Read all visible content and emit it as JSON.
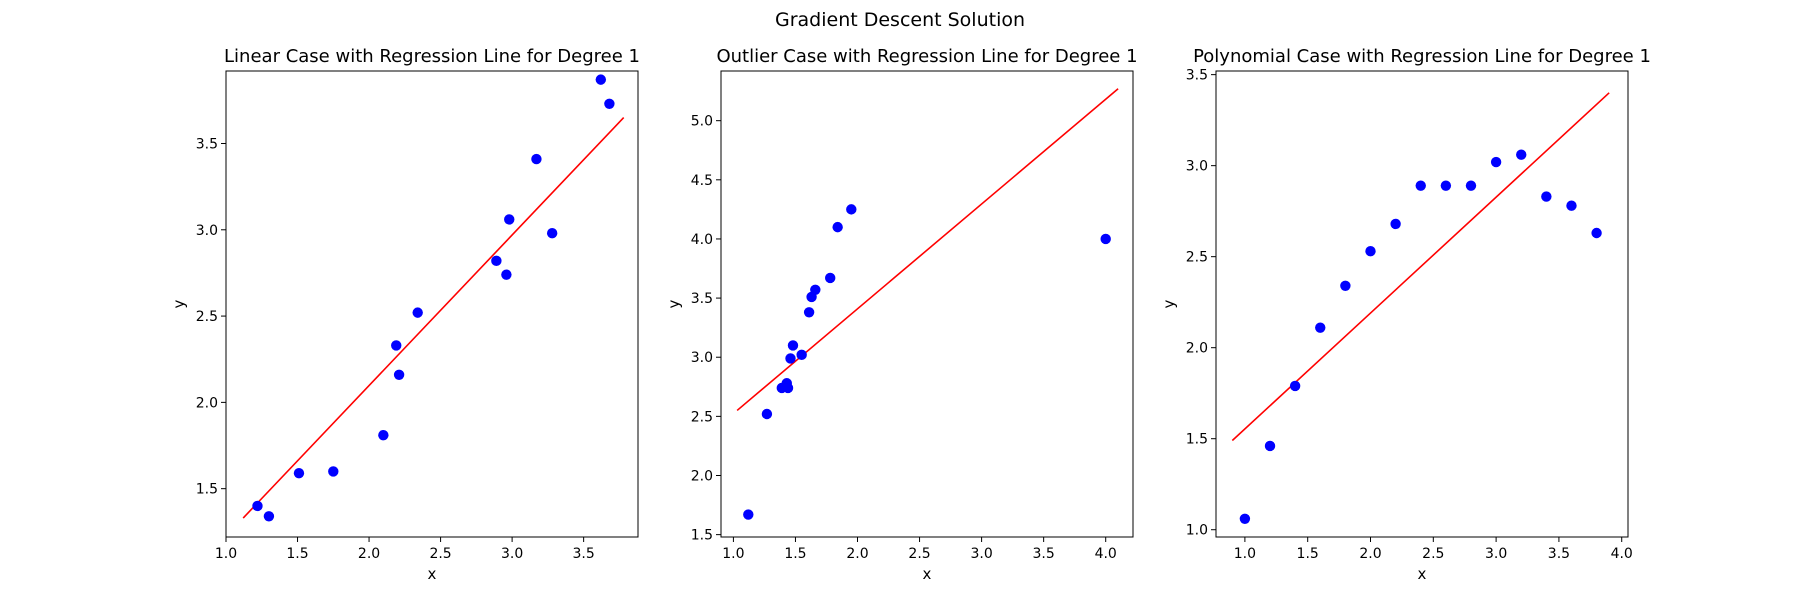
{
  "figure": {
    "suptitle": "Gradient Descent Solution"
  },
  "colors": {
    "points": "#0000ff",
    "line": "#ff0000",
    "axes": "#000000",
    "background": "#ffffff"
  },
  "chart_data": [
    {
      "type": "scatter",
      "title": "Linear Case with Regression Line for Degree 1",
      "xlabel": "x",
      "ylabel": "y",
      "xlim": [
        1.0,
        3.88
      ],
      "ylim": [
        1.22,
        3.92
      ],
      "xticks": [
        "1.0",
        "1.5",
        "2.0",
        "2.5",
        "3.0",
        "3.5"
      ],
      "yticks": [
        "1.5",
        "2.0",
        "2.5",
        "3.0",
        "3.5"
      ],
      "points": {
        "x": [
          1.22,
          1.3,
          1.51,
          1.75,
          2.1,
          2.19,
          2.21,
          2.34,
          2.89,
          2.96,
          2.98,
          3.17,
          3.28,
          3.62,
          3.68
        ],
        "y": [
          1.4,
          1.34,
          1.59,
          1.6,
          1.81,
          2.33,
          2.16,
          2.52,
          2.82,
          2.74,
          3.06,
          3.41,
          2.98,
          3.87,
          3.73
        ]
      },
      "line": {
        "x": [
          1.12,
          3.78
        ],
        "y": [
          1.33,
          3.65
        ]
      },
      "grid": false
    },
    {
      "type": "scatter",
      "title": "Outlier Case with Regression Line for Degree 1",
      "xlabel": "x",
      "ylabel": "y",
      "xlim": [
        0.9,
        4.22
      ],
      "ylim": [
        1.48,
        5.42
      ],
      "xticks": [
        "1.0",
        "1.5",
        "2.0",
        "2.5",
        "3.0",
        "3.5",
        "4.0"
      ],
      "yticks": [
        "1.5",
        "2.0",
        "2.5",
        "3.0",
        "3.5",
        "4.0",
        "4.5",
        "5.0"
      ],
      "points": {
        "x": [
          1.12,
          1.27,
          1.39,
          1.43,
          1.44,
          1.46,
          1.48,
          1.55,
          1.61,
          1.63,
          1.66,
          1.78,
          1.84,
          1.95,
          4.0
        ],
        "y": [
          1.67,
          2.52,
          2.74,
          2.78,
          2.74,
          2.99,
          3.1,
          3.02,
          3.38,
          3.51,
          3.57,
          3.67,
          4.1,
          4.25,
          4.0
        ]
      },
      "line": {
        "x": [
          1.03,
          4.1
        ],
        "y": [
          2.55,
          5.27
        ]
      },
      "grid": false
    },
    {
      "type": "scatter",
      "title": "Polynomial Case with Regression Line for Degree 1",
      "xlabel": "x",
      "ylabel": "y",
      "xlim": [
        0.77,
        4.05
      ],
      "ylim": [
        0.96,
        3.52
      ],
      "xticks": [
        "1.0",
        "1.5",
        "2.0",
        "2.5",
        "3.0",
        "3.5",
        "4.0"
      ],
      "yticks": [
        "1.0",
        "1.5",
        "2.0",
        "2.5",
        "3.0",
        "3.5"
      ],
      "points": {
        "x": [
          1.0,
          1.2,
          1.4,
          1.6,
          1.8,
          2.0,
          2.2,
          2.4,
          2.6,
          2.8,
          3.0,
          3.2,
          3.4,
          3.6,
          3.8
        ],
        "y": [
          1.06,
          1.46,
          1.79,
          2.11,
          2.34,
          2.53,
          2.68,
          2.89,
          2.89,
          2.89,
          3.02,
          3.06,
          2.83,
          2.78,
          2.63
        ]
      },
      "line": {
        "x": [
          0.9,
          3.9
        ],
        "y": [
          1.49,
          3.4
        ]
      },
      "grid": false
    }
  ]
}
